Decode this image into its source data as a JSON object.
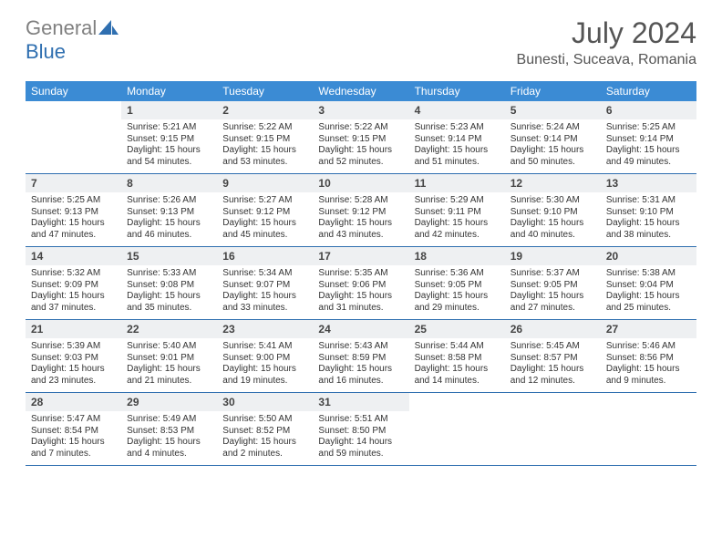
{
  "logo": {
    "text_gray": "General",
    "text_blue": "Blue"
  },
  "header": {
    "month_title": "July 2024",
    "location": "Bunesti, Suceava, Romania"
  },
  "colors": {
    "header_bg": "#3b8bd4",
    "header_text": "#ffffff",
    "daynum_bg": "#eef0f2",
    "rule": "#2f6fb0",
    "logo_gray": "#808080",
    "logo_blue": "#2f6fb0"
  },
  "day_headers": [
    "Sunday",
    "Monday",
    "Tuesday",
    "Wednesday",
    "Thursday",
    "Friday",
    "Saturday"
  ],
  "weeks": [
    [
      {
        "num": "",
        "sunrise": "",
        "sunset": "",
        "daylight": "",
        "empty": true
      },
      {
        "num": "1",
        "sunrise": "Sunrise: 5:21 AM",
        "sunset": "Sunset: 9:15 PM",
        "daylight": "Daylight: 15 hours and 54 minutes."
      },
      {
        "num": "2",
        "sunrise": "Sunrise: 5:22 AM",
        "sunset": "Sunset: 9:15 PM",
        "daylight": "Daylight: 15 hours and 53 minutes."
      },
      {
        "num": "3",
        "sunrise": "Sunrise: 5:22 AM",
        "sunset": "Sunset: 9:15 PM",
        "daylight": "Daylight: 15 hours and 52 minutes."
      },
      {
        "num": "4",
        "sunrise": "Sunrise: 5:23 AM",
        "sunset": "Sunset: 9:14 PM",
        "daylight": "Daylight: 15 hours and 51 minutes."
      },
      {
        "num": "5",
        "sunrise": "Sunrise: 5:24 AM",
        "sunset": "Sunset: 9:14 PM",
        "daylight": "Daylight: 15 hours and 50 minutes."
      },
      {
        "num": "6",
        "sunrise": "Sunrise: 5:25 AM",
        "sunset": "Sunset: 9:14 PM",
        "daylight": "Daylight: 15 hours and 49 minutes."
      }
    ],
    [
      {
        "num": "7",
        "sunrise": "Sunrise: 5:25 AM",
        "sunset": "Sunset: 9:13 PM",
        "daylight": "Daylight: 15 hours and 47 minutes."
      },
      {
        "num": "8",
        "sunrise": "Sunrise: 5:26 AM",
        "sunset": "Sunset: 9:13 PM",
        "daylight": "Daylight: 15 hours and 46 minutes."
      },
      {
        "num": "9",
        "sunrise": "Sunrise: 5:27 AM",
        "sunset": "Sunset: 9:12 PM",
        "daylight": "Daylight: 15 hours and 45 minutes."
      },
      {
        "num": "10",
        "sunrise": "Sunrise: 5:28 AM",
        "sunset": "Sunset: 9:12 PM",
        "daylight": "Daylight: 15 hours and 43 minutes."
      },
      {
        "num": "11",
        "sunrise": "Sunrise: 5:29 AM",
        "sunset": "Sunset: 9:11 PM",
        "daylight": "Daylight: 15 hours and 42 minutes."
      },
      {
        "num": "12",
        "sunrise": "Sunrise: 5:30 AM",
        "sunset": "Sunset: 9:10 PM",
        "daylight": "Daylight: 15 hours and 40 minutes."
      },
      {
        "num": "13",
        "sunrise": "Sunrise: 5:31 AM",
        "sunset": "Sunset: 9:10 PM",
        "daylight": "Daylight: 15 hours and 38 minutes."
      }
    ],
    [
      {
        "num": "14",
        "sunrise": "Sunrise: 5:32 AM",
        "sunset": "Sunset: 9:09 PM",
        "daylight": "Daylight: 15 hours and 37 minutes."
      },
      {
        "num": "15",
        "sunrise": "Sunrise: 5:33 AM",
        "sunset": "Sunset: 9:08 PM",
        "daylight": "Daylight: 15 hours and 35 minutes."
      },
      {
        "num": "16",
        "sunrise": "Sunrise: 5:34 AM",
        "sunset": "Sunset: 9:07 PM",
        "daylight": "Daylight: 15 hours and 33 minutes."
      },
      {
        "num": "17",
        "sunrise": "Sunrise: 5:35 AM",
        "sunset": "Sunset: 9:06 PM",
        "daylight": "Daylight: 15 hours and 31 minutes."
      },
      {
        "num": "18",
        "sunrise": "Sunrise: 5:36 AM",
        "sunset": "Sunset: 9:05 PM",
        "daylight": "Daylight: 15 hours and 29 minutes."
      },
      {
        "num": "19",
        "sunrise": "Sunrise: 5:37 AM",
        "sunset": "Sunset: 9:05 PM",
        "daylight": "Daylight: 15 hours and 27 minutes."
      },
      {
        "num": "20",
        "sunrise": "Sunrise: 5:38 AM",
        "sunset": "Sunset: 9:04 PM",
        "daylight": "Daylight: 15 hours and 25 minutes."
      }
    ],
    [
      {
        "num": "21",
        "sunrise": "Sunrise: 5:39 AM",
        "sunset": "Sunset: 9:03 PM",
        "daylight": "Daylight: 15 hours and 23 minutes."
      },
      {
        "num": "22",
        "sunrise": "Sunrise: 5:40 AM",
        "sunset": "Sunset: 9:01 PM",
        "daylight": "Daylight: 15 hours and 21 minutes."
      },
      {
        "num": "23",
        "sunrise": "Sunrise: 5:41 AM",
        "sunset": "Sunset: 9:00 PM",
        "daylight": "Daylight: 15 hours and 19 minutes."
      },
      {
        "num": "24",
        "sunrise": "Sunrise: 5:43 AM",
        "sunset": "Sunset: 8:59 PM",
        "daylight": "Daylight: 15 hours and 16 minutes."
      },
      {
        "num": "25",
        "sunrise": "Sunrise: 5:44 AM",
        "sunset": "Sunset: 8:58 PM",
        "daylight": "Daylight: 15 hours and 14 minutes."
      },
      {
        "num": "26",
        "sunrise": "Sunrise: 5:45 AM",
        "sunset": "Sunset: 8:57 PM",
        "daylight": "Daylight: 15 hours and 12 minutes."
      },
      {
        "num": "27",
        "sunrise": "Sunrise: 5:46 AM",
        "sunset": "Sunset: 8:56 PM",
        "daylight": "Daylight: 15 hours and 9 minutes."
      }
    ],
    [
      {
        "num": "28",
        "sunrise": "Sunrise: 5:47 AM",
        "sunset": "Sunset: 8:54 PM",
        "daylight": "Daylight: 15 hours and 7 minutes."
      },
      {
        "num": "29",
        "sunrise": "Sunrise: 5:49 AM",
        "sunset": "Sunset: 8:53 PM",
        "daylight": "Daylight: 15 hours and 4 minutes."
      },
      {
        "num": "30",
        "sunrise": "Sunrise: 5:50 AM",
        "sunset": "Sunset: 8:52 PM",
        "daylight": "Daylight: 15 hours and 2 minutes."
      },
      {
        "num": "31",
        "sunrise": "Sunrise: 5:51 AM",
        "sunset": "Sunset: 8:50 PM",
        "daylight": "Daylight: 14 hours and 59 minutes."
      },
      {
        "num": "",
        "sunrise": "",
        "sunset": "",
        "daylight": "",
        "empty": true
      },
      {
        "num": "",
        "sunrise": "",
        "sunset": "",
        "daylight": "",
        "empty": true
      },
      {
        "num": "",
        "sunrise": "",
        "sunset": "",
        "daylight": "",
        "empty": true
      }
    ]
  ]
}
